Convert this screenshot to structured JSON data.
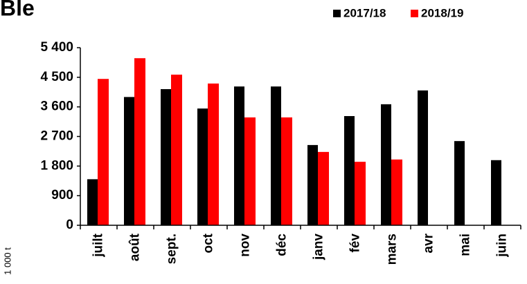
{
  "chart_data": {
    "type": "bar",
    "title": "Ble",
    "y_axis_label": "1 000 t",
    "categories": [
      "juilt",
      "août",
      "sept.",
      "oct",
      "nov",
      "déc",
      "janv",
      "fév",
      "mars",
      "avr",
      "mai",
      "juin"
    ],
    "series": [
      {
        "name": "2017/18",
        "color": "#000000",
        "values": [
          1400,
          3900,
          4140,
          3550,
          4220,
          4220,
          2440,
          3320,
          3680,
          4100,
          2560,
          1980
        ]
      },
      {
        "name": "2018/19",
        "color": "#ff0000",
        "values": [
          4450,
          5080,
          4580,
          4310,
          3280,
          3280,
          2230,
          1930,
          2000,
          null,
          null,
          null
        ]
      }
    ],
    "ylim": [
      0,
      5400
    ],
    "yticks": [
      0,
      900,
      {
        "value": 1800,
        "label": "1 800"
      },
      {
        "value": 2700,
        "label": "2 700"
      },
      {
        "value": 3600,
        "label": "3 600"
      },
      {
        "value": 4500,
        "label": "4 500"
      },
      {
        "value": 5400,
        "label": "5 400"
      }
    ],
    "grid": false
  }
}
